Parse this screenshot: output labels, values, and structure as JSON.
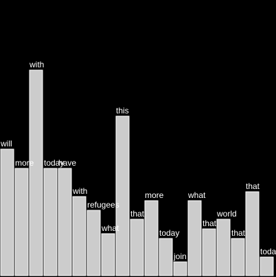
{
  "chart_data": {
    "type": "bar",
    "categories": [
      "will",
      "more",
      "with",
      "today",
      "have",
      "with",
      "refugees",
      "what",
      "this",
      "that",
      "more",
      "today",
      "join",
      "what",
      "that",
      "world",
      "that",
      "that",
      "today"
    ],
    "values": [
      184,
      156,
      299,
      156,
      156,
      115,
      95,
      61,
      232,
      82,
      109,
      54,
      20,
      109,
      68,
      82,
      54,
      122,
      27
    ],
    "ylim": [
      0,
      310
    ],
    "grid": false,
    "legend": "none"
  },
  "colors": {
    "background": "#000000",
    "bar_fill": "#cccccc",
    "bar_stroke": "#ffffff",
    "label": "#ffffff"
  }
}
